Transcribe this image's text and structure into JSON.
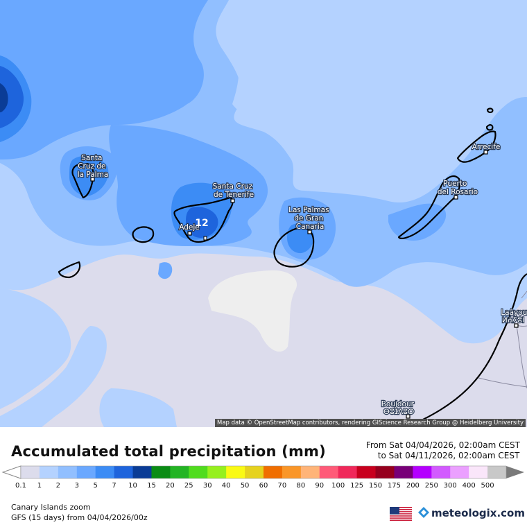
{
  "map": {
    "cities": [
      {
        "id": "santa-cruz-la-palma",
        "lines": [
          "Santa",
          "Cruz de",
          "la Palma"
        ]
      },
      {
        "id": "santa-cruz-tenerife",
        "lines": [
          "Santa Cruz",
          "de Tenerife"
        ]
      },
      {
        "id": "adeje",
        "lines": [
          "Adeje"
        ]
      },
      {
        "id": "las-palmas",
        "lines": [
          "Las Palmas",
          "de Gran",
          "Canaria"
        ]
      },
      {
        "id": "puerto-del-rosario",
        "lines": [
          "Puerto",
          "del Rosario"
        ]
      },
      {
        "id": "arrecife",
        "lines": [
          "Arrecife"
        ]
      },
      {
        "id": "laayoune",
        "lines": [
          "Laâyou",
          "ⵍⵄⵢⵓⵏ"
        ]
      },
      {
        "id": "boujdour",
        "lines": [
          "Boujdour",
          "ⴱⵓⵊⴷⵓⵔ"
        ]
      }
    ],
    "max_value_label": "12",
    "attribution": "Map data © OpenStreetMap contributors, rendering GIScience Research Group @ Heidelberg University"
  },
  "legend": {
    "title": "Accumulated total precipitation (mm)",
    "from": "From Sat 04/04/2026, 02:00am CEST",
    "to": "to Sat 04/11/2026, 02:00am CEST",
    "scale": [
      {
        "label": "0.1",
        "color": "#dcdcec"
      },
      {
        "label": "1",
        "color": "#b4d2ff"
      },
      {
        "label": "2",
        "color": "#91bfff"
      },
      {
        "label": "3",
        "color": "#6aa8ff"
      },
      {
        "label": "5",
        "color": "#3c8cf5"
      },
      {
        "label": "7",
        "color": "#1e64dc"
      },
      {
        "label": "10",
        "color": "#0a3c96"
      },
      {
        "label": "15",
        "color": "#0a8c14"
      },
      {
        "label": "20",
        "color": "#23b423"
      },
      {
        "label": "25",
        "color": "#50dc1e"
      },
      {
        "label": "30",
        "color": "#96f01e"
      },
      {
        "label": "40",
        "color": "#fafa14"
      },
      {
        "label": "50",
        "color": "#e6d21e"
      },
      {
        "label": "60",
        "color": "#f06e00"
      },
      {
        "label": "70",
        "color": "#fa9628"
      },
      {
        "label": "80",
        "color": "#ffb478"
      },
      {
        "label": "90",
        "color": "#ff5a78"
      },
      {
        "label": "100",
        "color": "#f0285a"
      },
      {
        "label": "125",
        "color": "#c8001e"
      },
      {
        "label": "150",
        "color": "#96001e"
      },
      {
        "label": "175",
        "color": "#780078"
      },
      {
        "label": "200",
        "color": "#b400ff"
      },
      {
        "label": "250",
        "color": "#d25aff"
      },
      {
        "label": "300",
        "color": "#eba0ff"
      },
      {
        "label": "400",
        "color": "#fae6fa"
      },
      {
        "label": "500",
        "color": "#c8c8c8"
      }
    ]
  },
  "footer": {
    "region": "Canary Islands zoom",
    "model": "GFS (15 days) from  04/04/2026/00z",
    "brand": "meteologix.com"
  }
}
